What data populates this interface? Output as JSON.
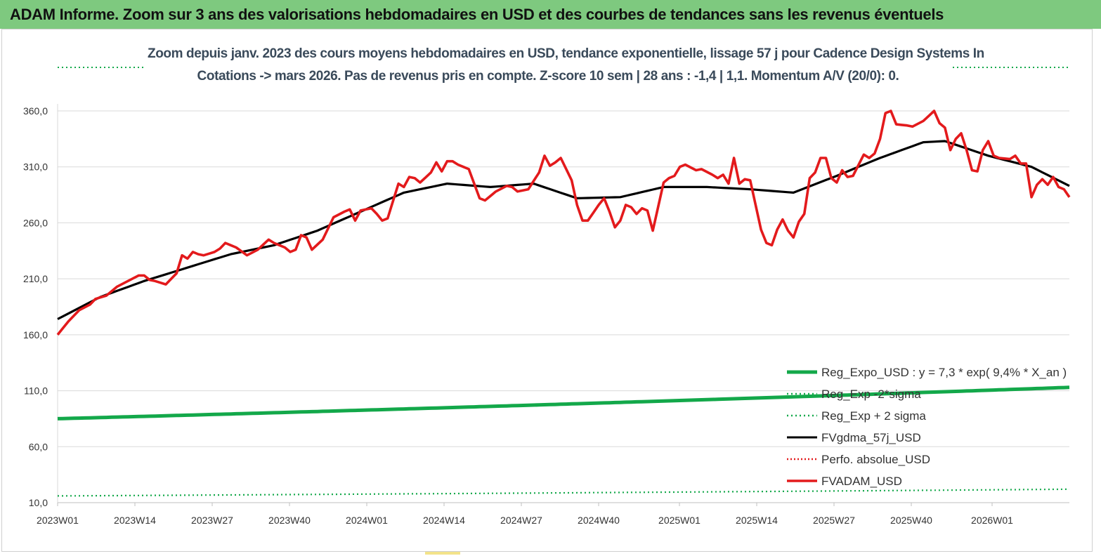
{
  "banner": {
    "title": "ADAM Informe. Zoom sur 3 ans des valorisations hebdomadaires en USD et des courbes de tendances sans les revenus éventuels"
  },
  "chart_data": {
    "type": "line",
    "title_line1": "Zoom depuis janv. 2023 des cours moyens hebdomadaires en USD, tendance exponentielle, lissage 57 j pour Cadence Design Systems In",
    "title_line2": "Cotations -> mars 2026. Pas de revenus pris en compte. Z-score 10 sem | 28 ans : -1,4 | 1,1. Momentum A/V (20/0): 0.",
    "xlabel": "",
    "ylabel": "",
    "ylim": [
      10,
      360
    ],
    "yticks": [
      "10,0",
      "60,0",
      "110,0",
      "160,0",
      "210,0",
      "260,0",
      "310,0",
      "360,0"
    ],
    "ytick_values": [
      10,
      60,
      110,
      160,
      210,
      260,
      310,
      360
    ],
    "xticks": [
      "2023W01",
      "2023W14",
      "2023W27",
      "2023W40",
      "2024W01",
      "2024W14",
      "2024W27",
      "2024W40",
      "2025W01",
      "2025W14",
      "2025W27",
      "2025W40",
      "2026W01"
    ],
    "xtick_index": [
      0,
      13,
      26,
      39,
      52,
      65,
      78,
      91,
      104,
      117,
      130,
      143,
      156
    ],
    "n_weeks": 171,
    "grid": true,
    "legend_position": "bottom-right",
    "series": [
      {
        "name": "FVADAM_USD",
        "legend": "FVADAM_USD",
        "color": "#e31a1c",
        "style": "solid",
        "anchors": [
          [
            0,
            160
          ],
          [
            2,
            172
          ],
          [
            4,
            182
          ],
          [
            6,
            187
          ],
          [
            7,
            192
          ],
          [
            9,
            195
          ],
          [
            11,
            203
          ],
          [
            13,
            208
          ],
          [
            15,
            213
          ],
          [
            16,
            213
          ],
          [
            17,
            209
          ],
          [
            18,
            208
          ],
          [
            20,
            205
          ],
          [
            22,
            215
          ],
          [
            23,
            231
          ],
          [
            24,
            228
          ],
          [
            25,
            234
          ],
          [
            26,
            232
          ],
          [
            27,
            231
          ],
          [
            29,
            234
          ],
          [
            30,
            237
          ],
          [
            31,
            242
          ],
          [
            33,
            238
          ],
          [
            35,
            231
          ],
          [
            37,
            236
          ],
          [
            39,
            245
          ],
          [
            40,
            242
          ],
          [
            42,
            238
          ],
          [
            43,
            234
          ],
          [
            44,
            236
          ],
          [
            45,
            249
          ],
          [
            46,
            247
          ],
          [
            47,
            236
          ],
          [
            49,
            245
          ],
          [
            51,
            265
          ],
          [
            53,
            270
          ],
          [
            54,
            272
          ],
          [
            55,
            262
          ],
          [
            56,
            271
          ],
          [
            57,
            272
          ],
          [
            58,
            273
          ],
          [
            59,
            268
          ],
          [
            60,
            262
          ],
          [
            61,
            264
          ],
          [
            63,
            295
          ],
          [
            64,
            292
          ],
          [
            65,
            301
          ],
          [
            66,
            300
          ],
          [
            67,
            296
          ],
          [
            69,
            305
          ],
          [
            70,
            314
          ],
          [
            71,
            306
          ],
          [
            72,
            315
          ],
          [
            73,
            315
          ],
          [
            74,
            312
          ],
          [
            76,
            308
          ],
          [
            78,
            282
          ],
          [
            79,
            280
          ],
          [
            81,
            288
          ],
          [
            83,
            293
          ],
          [
            84,
            292
          ],
          [
            85,
            288
          ],
          [
            87,
            290
          ],
          [
            89,
            305
          ],
          [
            90,
            320
          ],
          [
            91,
            311
          ],
          [
            92,
            314
          ],
          [
            93,
            318
          ],
          [
            95,
            298
          ],
          [
            96,
            276
          ],
          [
            97,
            262
          ],
          [
            98,
            262
          ],
          [
            100,
            276
          ],
          [
            101,
            282
          ],
          [
            102,
            270
          ],
          [
            103,
            256
          ],
          [
            104,
            262
          ],
          [
            105,
            276
          ],
          [
            106,
            274
          ],
          [
            107,
            268
          ],
          [
            108,
            273
          ],
          [
            109,
            271
          ],
          [
            110,
            253
          ],
          [
            112,
            296
          ],
          [
            113,
            300
          ],
          [
            114,
            302
          ],
          [
            115,
            310
          ],
          [
            116,
            312
          ],
          [
            118,
            307
          ],
          [
            119,
            308
          ],
          [
            121,
            303
          ],
          [
            122,
            300
          ],
          [
            123,
            303
          ],
          [
            124,
            295
          ],
          [
            125,
            318
          ],
          [
            126,
            295
          ],
          [
            127,
            299
          ],
          [
            128,
            298
          ],
          [
            130,
            254
          ],
          [
            131,
            242
          ],
          [
            132,
            240
          ],
          [
            133,
            254
          ],
          [
            134,
            263
          ],
          [
            135,
            253
          ],
          [
            136,
            247
          ],
          [
            137,
            261
          ],
          [
            138,
            268
          ],
          [
            139,
            300
          ],
          [
            140,
            305
          ],
          [
            141,
            318
          ],
          [
            142,
            318
          ],
          [
            143,
            300
          ],
          [
            144,
            296
          ],
          [
            145,
            307
          ],
          [
            146,
            301
          ],
          [
            147,
            302
          ],
          [
            149,
            321
          ],
          [
            150,
            318
          ],
          [
            151,
            322
          ],
          [
            152,
            335
          ],
          [
            153,
            358
          ],
          [
            154,
            360
          ],
          [
            155,
            348
          ],
          [
            157,
            347
          ],
          [
            158,
            346
          ],
          [
            160,
            351
          ],
          [
            162,
            360
          ],
          [
            163,
            349
          ],
          [
            164,
            345
          ],
          [
            165,
            325
          ],
          [
            166,
            335
          ],
          [
            167,
            340
          ],
          [
            168,
            325
          ],
          [
            169,
            307
          ],
          [
            170,
            306
          ],
          [
            171,
            325
          ],
          [
            172,
            333
          ],
          [
            173,
            320
          ],
          [
            174,
            318
          ],
          [
            176,
            317
          ],
          [
            177,
            320
          ],
          [
            178,
            313
          ],
          [
            179,
            313
          ],
          [
            180,
            283
          ],
          [
            181,
            294
          ],
          [
            182,
            299
          ],
          [
            183,
            294
          ],
          [
            184,
            301
          ],
          [
            185,
            292
          ],
          [
            186,
            290
          ],
          [
            187,
            283
          ]
        ],
        "n_total": 188
      },
      {
        "name": "FVgdma_57j_USD",
        "legend": "FVgdma_57j_USD",
        "color": "#000000",
        "style": "solid",
        "anchors": [
          [
            0,
            174
          ],
          [
            8,
            194
          ],
          [
            16,
            208
          ],
          [
            24,
            220
          ],
          [
            32,
            232
          ],
          [
            40,
            240
          ],
          [
            48,
            253
          ],
          [
            56,
            270
          ],
          [
            64,
            287
          ],
          [
            72,
            295
          ],
          [
            80,
            292
          ],
          [
            88,
            295
          ],
          [
            96,
            282
          ],
          [
            104,
            283
          ],
          [
            112,
            292
          ],
          [
            120,
            292
          ],
          [
            128,
            290
          ],
          [
            136,
            287
          ],
          [
            144,
            302
          ],
          [
            152,
            318
          ],
          [
            160,
            332
          ],
          [
            164,
            333
          ],
          [
            172,
            320
          ],
          [
            180,
            310
          ],
          [
            187,
            293
          ]
        ]
      },
      {
        "name": "Reg_Expo_USD",
        "legend": "Reg_Expo_USD : y = 7,3 * exp( 9,4% *  X_an )",
        "color": "#13a84a",
        "style": "solid-thick",
        "start": 85,
        "end": 113
      },
      {
        "name": "Reg_Exp -2*sigma",
        "legend": "Reg_Exp -2*sigma",
        "color": "#13a84a",
        "style": "dotted",
        "start": 16,
        "end": 22
      },
      {
        "name": "Reg_Exp + 2 sigma",
        "legend": "Reg_Exp + 2 sigma",
        "color": "#13a84a",
        "style": "dotted",
        "visible_above_plot": true
      },
      {
        "name": "Perfo. absolue_USD",
        "legend": "Perfo. absolue_USD",
        "color": "#e31a1c",
        "style": "dotted"
      }
    ]
  }
}
